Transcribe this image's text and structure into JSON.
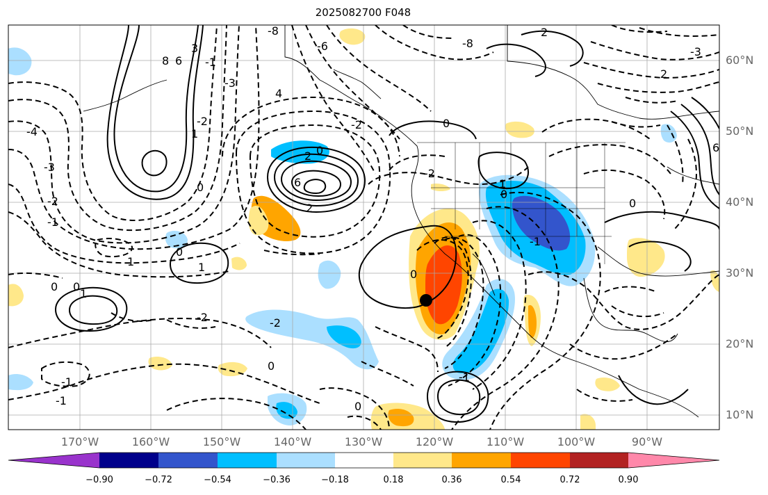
{
  "title": "2025082700 F048",
  "lat_labels": [
    "60°N",
    "50°N",
    "40°N",
    "30°N",
    "20°N",
    "10°N"
  ],
  "lon_labels": [
    "170°W",
    "160°W",
    "150°W",
    "140°W",
    "130°W",
    "120°W",
    "110°W",
    "100°W",
    "90°W"
  ],
  "colorbar": {
    "ticks": [
      "−0.90",
      "−0.72",
      "−0.54",
      "−0.36",
      "−0.18",
      "0.18",
      "0.36",
      "0.54",
      "0.72",
      "0.90"
    ],
    "colors": [
      "#9933cc",
      "#00008b",
      "#3355cc",
      "#00bfff",
      "#abdfff",
      "#ffffff",
      "#ffe88a",
      "#ffa500",
      "#ff4500",
      "#b22222",
      "#ff88aa"
    ]
  },
  "contour_labels": [
    "-8",
    "8",
    "6",
    "3",
    "-3",
    "-2",
    "-1",
    "1",
    "0",
    "-4",
    "-6",
    "4",
    "6",
    "0",
    "2",
    "-1",
    "-2",
    "1",
    "2",
    "-2",
    "-3",
    "0",
    "-1",
    "1",
    "0",
    "-2",
    "0",
    "1",
    "0",
    "-1",
    "0",
    "0",
    "-1",
    "-2",
    "-2",
    "0",
    "1",
    "-1",
    "0",
    "0",
    "6",
    "2",
    "-3",
    "-8",
    "2"
  ],
  "colors": {
    "positive_contour": "#000000",
    "negative_contour": "#000000",
    "axis_label": "#666666"
  }
}
